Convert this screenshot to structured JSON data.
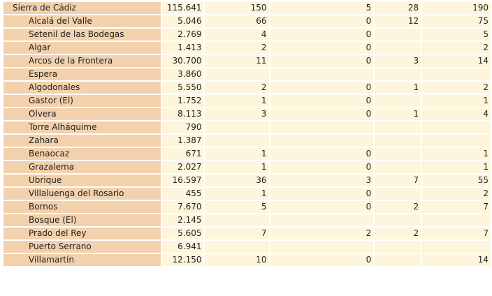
{
  "rows": [
    {
      "name": "Sierra de Cádiz",
      "level": "region",
      "c1": "115.641",
      "c2": "150",
      "c3": "5",
      "c4": "28",
      "c5": "190"
    },
    {
      "name": "Alcalá del Valle",
      "level": "muni",
      "c1": "5.046",
      "c2": "66",
      "c3": "0",
      "c4": "12",
      "c5": "75"
    },
    {
      "name": "Setenil de las Bodegas",
      "level": "muni",
      "c1": "2.769",
      "c2": "4",
      "c3": "0",
      "c4": "",
      "c5": "5"
    },
    {
      "name": "Algar",
      "level": "muni",
      "c1": "1.413",
      "c2": "2",
      "c3": "0",
      "c4": "",
      "c5": "2"
    },
    {
      "name": "Arcos de la Frontera",
      "level": "muni",
      "c1": "30.700",
      "c2": "11",
      "c3": "0",
      "c4": "3",
      "c5": "14"
    },
    {
      "name": "Espera",
      "level": "muni",
      "c1": "3.860",
      "c2": "",
      "c3": "",
      "c4": "",
      "c5": ""
    },
    {
      "name": "Algodonales",
      "level": "muni",
      "c1": "5.550",
      "c2": "2",
      "c3": "0",
      "c4": "1",
      "c5": "2"
    },
    {
      "name": "Gastor (El)",
      "level": "muni",
      "c1": "1.752",
      "c2": "1",
      "c3": "0",
      "c4": "",
      "c5": "1"
    },
    {
      "name": "Olvera",
      "level": "muni",
      "c1": "8.113",
      "c2": "3",
      "c3": "0",
      "c4": "1",
      "c5": "4"
    },
    {
      "name": "Torre Alháquime",
      "level": "muni",
      "c1": "790",
      "c2": "",
      "c3": "",
      "c4": "",
      "c5": ""
    },
    {
      "name": "Zahara",
      "level": "muni",
      "c1": "1.387",
      "c2": "",
      "c3": "",
      "c4": "",
      "c5": ""
    },
    {
      "name": "Benaocaz",
      "level": "muni",
      "c1": "671",
      "c2": "1",
      "c3": "0",
      "c4": "",
      "c5": "1"
    },
    {
      "name": "Grazalema",
      "level": "muni",
      "c1": "2.027",
      "c2": "1",
      "c3": "0",
      "c4": "",
      "c5": "1"
    },
    {
      "name": "Ubrique",
      "level": "muni",
      "c1": "16.597",
      "c2": "36",
      "c3": "3",
      "c4": "7",
      "c5": "55"
    },
    {
      "name": "Villaluenga del Rosario",
      "level": "muni",
      "c1": "455",
      "c2": "1",
      "c3": "0",
      "c4": "",
      "c5": "2"
    },
    {
      "name": "Bornos",
      "level": "muni",
      "c1": "7.670",
      "c2": "5",
      "c3": "0",
      "c4": "2",
      "c5": "7"
    },
    {
      "name": "Bosque (El)",
      "level": "muni",
      "c1": "2.145",
      "c2": "",
      "c3": "",
      "c4": "",
      "c5": ""
    },
    {
      "name": "Prado del Rey",
      "level": "muni",
      "c1": "5.605",
      "c2": "7",
      "c3": "2",
      "c4": "2",
      "c5": "7"
    },
    {
      "name": "Puerto Serrano",
      "level": "muni",
      "c1": "6.941",
      "c2": "",
      "c3": "",
      "c4": "",
      "c5": ""
    },
    {
      "name": "Villamartín",
      "level": "muni",
      "c1": "12.150",
      "c2": "10",
      "c3": "0",
      "c4": "",
      "c5": "14"
    }
  ],
  "colors": {
    "name_cell": "#f2d1ac",
    "value_cell": "#fdf5dc"
  }
}
